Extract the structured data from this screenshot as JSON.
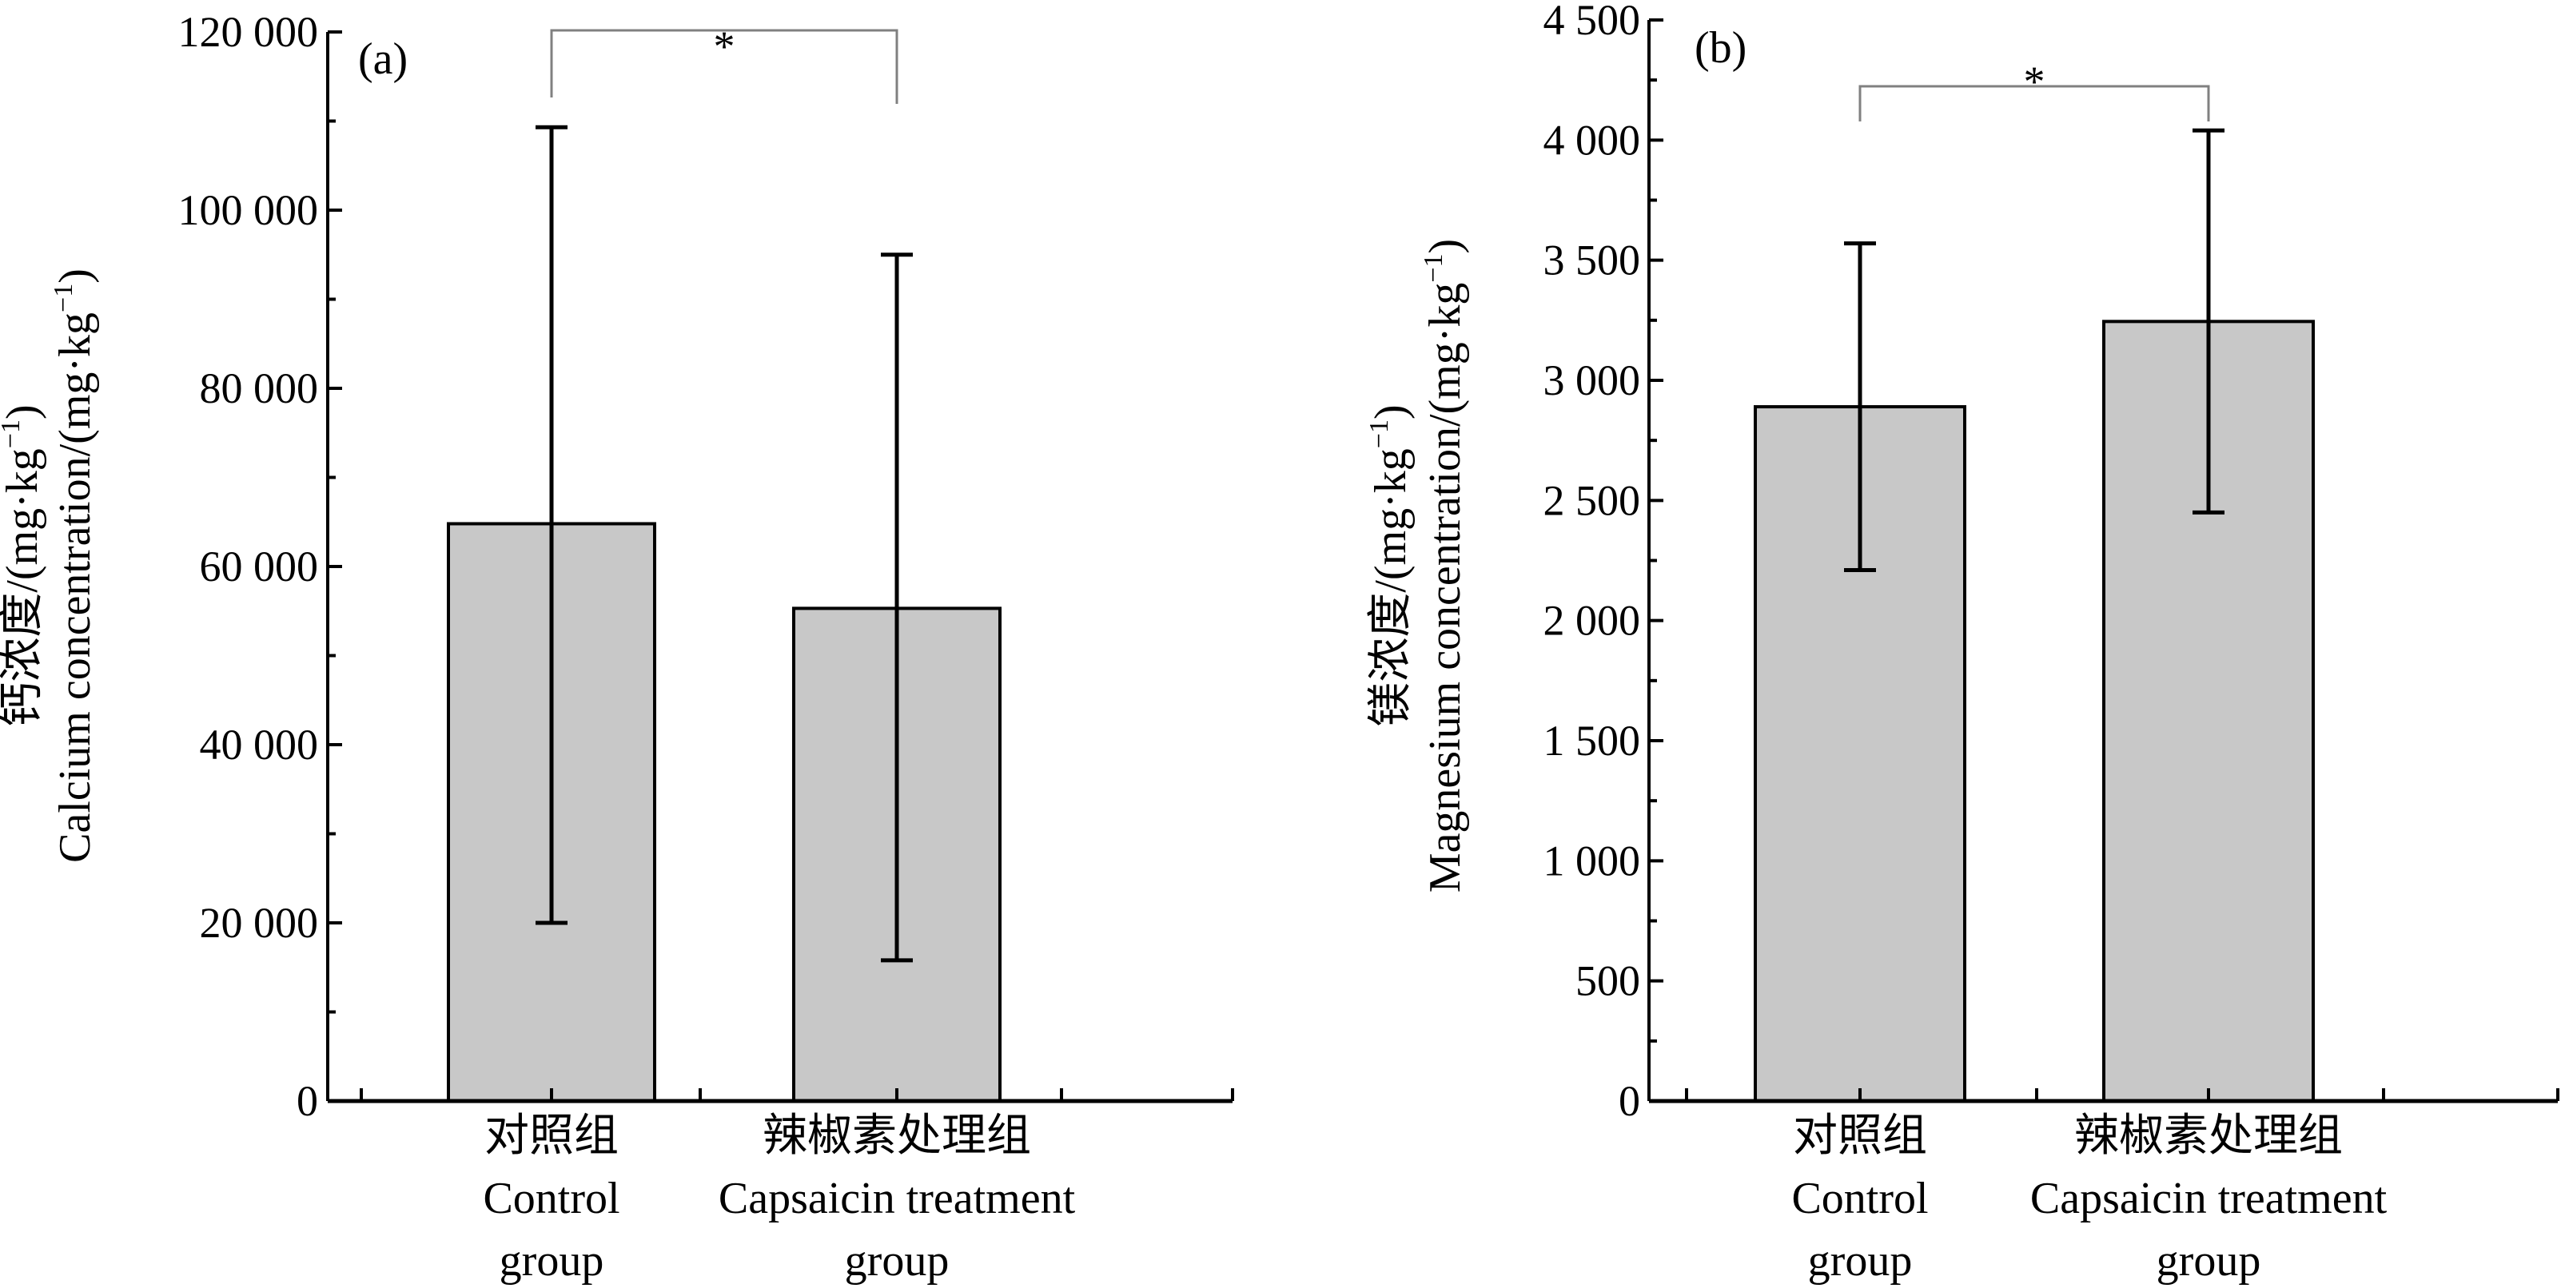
{
  "chart_data": [
    {
      "type": "bar",
      "panel_label": "(a)",
      "categories": [
        {
          "zh": "对照组",
          "en_line1": "Control",
          "en_line2": "group"
        },
        {
          "zh": "辣椒素处理组",
          "en_line1": "Capsaicin treatment",
          "en_line2": "group"
        }
      ],
      "values": [
        64800,
        55300
      ],
      "error_upper": [
        109300,
        95000
      ],
      "error_lower": [
        20000,
        15800
      ],
      "ylabel_zh": "钙浓度/(mg·kg",
      "ylabel_en": "Calcium concentration/(mg·kg",
      "ylabel_sup": "−1",
      "ylim": [
        0,
        120000
      ],
      "yticks": [
        0,
        20000,
        40000,
        60000,
        80000,
        100000,
        120000
      ],
      "ytick_labels": [
        "0",
        "20 000",
        "40 000",
        "60 000",
        "80 000",
        "100 000",
        "120 000"
      ],
      "significance": "*",
      "bar_color": "#c8c8c8"
    },
    {
      "type": "bar",
      "panel_label": "(b)",
      "categories": [
        {
          "zh": "对照组",
          "en_line1": "Control",
          "en_line2": "group"
        },
        {
          "zh": "辣椒素处理组",
          "en_line1": "Capsaicin treatment",
          "en_line2": "group"
        }
      ],
      "values": [
        2890,
        3245
      ],
      "error_upper": [
        3570,
        4040
      ],
      "error_lower": [
        2210,
        2450
      ],
      "ylabel_zh": "镁浓度/(mg·kg",
      "ylabel_en": "Magnesium concentration/(mg·kg",
      "ylabel_sup": "−1",
      "ylim": [
        0,
        4500
      ],
      "yticks": [
        0,
        500,
        1000,
        1500,
        2000,
        2500,
        3000,
        3500,
        4000,
        4500
      ],
      "ytick_labels": [
        "0",
        "500",
        "1 000",
        "1 500",
        "2 000",
        "2 500",
        "3 000",
        "3 500",
        "4 000",
        "4 500"
      ],
      "significance": "*",
      "bar_color": "#c8c8c8"
    }
  ]
}
